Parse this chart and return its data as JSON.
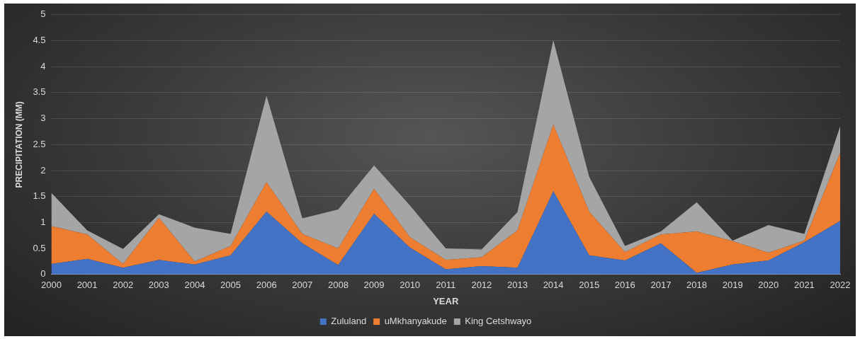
{
  "chart_data": {
    "type": "area",
    "stacked": true,
    "xlabel": "YEAR",
    "ylabel": "PRECIPITATION (MM)",
    "categories": [
      "2000",
      "2001",
      "2002",
      "2003",
      "2004",
      "2005",
      "2006",
      "2007",
      "2008",
      "2009",
      "2010",
      "2011",
      "2012",
      "2013",
      "2014",
      "2015",
      "2016",
      "2017",
      "2018",
      "2019",
      "2020",
      "2021",
      "2022"
    ],
    "series": [
      {
        "name": "Zululand",
        "color": "#4472c4",
        "values": [
          0.2,
          0.3,
          0.13,
          0.28,
          0.19,
          0.37,
          1.21,
          0.6,
          0.18,
          1.17,
          0.52,
          0.1,
          0.16,
          0.13,
          1.6,
          0.37,
          0.27,
          0.6,
          0.03,
          0.19,
          0.27,
          0.62,
          1.03
        ]
      },
      {
        "name": "uMkhanyakude",
        "color": "#ed7d31",
        "values": [
          0.73,
          0.47,
          0.07,
          0.81,
          0.06,
          0.18,
          0.57,
          0.18,
          0.32,
          0.48,
          0.2,
          0.18,
          0.17,
          0.72,
          1.29,
          0.84,
          0.16,
          0.17,
          0.8,
          0.45,
          0.15,
          0.03,
          1.31
        ]
      },
      {
        "name": "King Cetshwayo",
        "color": "#a5a5a5",
        "values": [
          0.64,
          0.08,
          0.29,
          0.07,
          0.65,
          0.23,
          1.66,
          0.3,
          0.75,
          0.45,
          0.61,
          0.22,
          0.15,
          0.35,
          1.62,
          0.67,
          0.12,
          0.06,
          0.56,
          0.01,
          0.53,
          0.13,
          0.51
        ]
      }
    ],
    "ylim": [
      0,
      5
    ],
    "yticks": [
      0,
      0.5,
      1,
      1.5,
      2,
      2.5,
      3,
      3.5,
      4,
      4.5,
      5
    ],
    "grid": "y",
    "legend": "bottom"
  }
}
